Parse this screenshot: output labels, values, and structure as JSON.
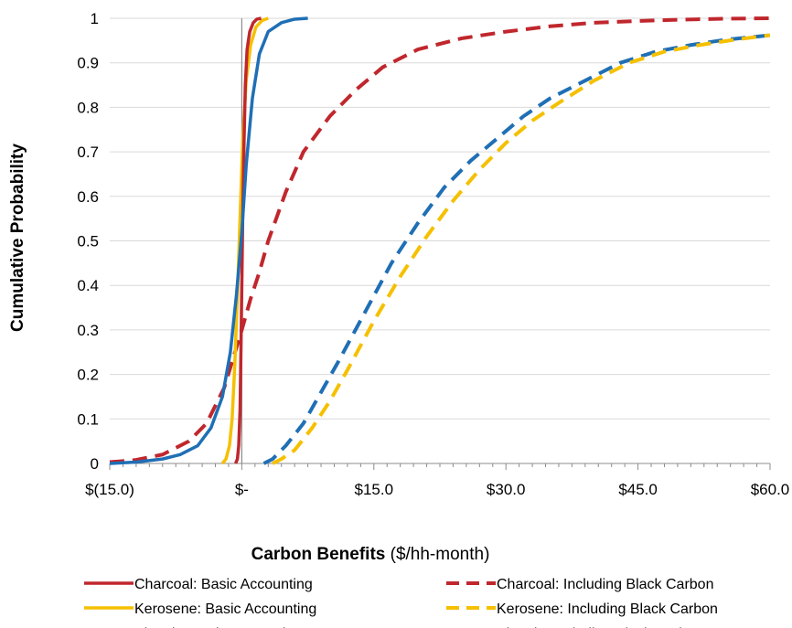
{
  "chart_data": {
    "type": "line",
    "xlabel_bold": "Carbon Benefits",
    "xlabel_rest": " ($/hh-month)",
    "ylabel": "Cumulative Probability",
    "xlim": [
      -15,
      60
    ],
    "ylim": [
      0,
      1
    ],
    "x_ticks": [
      {
        "value": -15,
        "label": "$(15.0)"
      },
      {
        "value": 0,
        "label": "$-"
      },
      {
        "value": 15,
        "label": "$15.0"
      },
      {
        "value": 30,
        "label": "$30.0"
      },
      {
        "value": 45,
        "label": "$45.0"
      },
      {
        "value": 60,
        "label": "$60.0"
      }
    ],
    "y_ticks": [
      {
        "value": 0,
        "label": "0"
      },
      {
        "value": 0.1,
        "label": "0.1"
      },
      {
        "value": 0.2,
        "label": "0.2"
      },
      {
        "value": 0.3,
        "label": "0.3"
      },
      {
        "value": 0.4,
        "label": "0.4"
      },
      {
        "value": 0.5,
        "label": "0.5"
      },
      {
        "value": 0.6,
        "label": "0.6"
      },
      {
        "value": 0.7,
        "label": "0.7"
      },
      {
        "value": 0.8,
        "label": "0.8"
      },
      {
        "value": 0.9,
        "label": "0.9"
      },
      {
        "value": 1,
        "label": "1"
      }
    ],
    "grid": "horizontal",
    "legend_position": "bottom",
    "series": [
      {
        "name": "Charcoal: Basic Accounting",
        "color": "#c0272d",
        "dashed": false,
        "x": [
          -0.7,
          -0.5,
          -0.35,
          -0.2,
          -0.1,
          0,
          0.1,
          0.25,
          0.4,
          0.6,
          0.9,
          1.3,
          1.7,
          2.2
        ],
        "y": [
          0,
          0.01,
          0.04,
          0.12,
          0.25,
          0.4,
          0.55,
          0.72,
          0.85,
          0.93,
          0.97,
          0.99,
          0.998,
          1.0
        ]
      },
      {
        "name": "Kerosene: Basic Accounting",
        "color": "#f5c000",
        "dashed": false,
        "x": [
          -2.2,
          -1.8,
          -1.4,
          -1.1,
          -0.8,
          -0.5,
          -0.2,
          0.1,
          0.5,
          1.0,
          1.6,
          2.3,
          3.0
        ],
        "y": [
          0,
          0.01,
          0.04,
          0.1,
          0.22,
          0.38,
          0.55,
          0.72,
          0.86,
          0.94,
          0.98,
          0.995,
          1.0
        ]
      },
      {
        "name": "Electric: Basic Accounting",
        "color": "#1f6fb5",
        "dashed": false,
        "x": [
          -15,
          -12,
          -9,
          -7,
          -5,
          -3.5,
          -2.2,
          -1.3,
          -0.6,
          0,
          0.5,
          1.2,
          2.0,
          3.0,
          4.5,
          6.0,
          7.5
        ],
        "y": [
          0,
          0.003,
          0.01,
          0.02,
          0.04,
          0.08,
          0.15,
          0.25,
          0.38,
          0.52,
          0.67,
          0.82,
          0.92,
          0.97,
          0.99,
          0.998,
          1.0
        ]
      },
      {
        "name": "Charcoal: Including Black Carbon",
        "color": "#c0272d",
        "dashed": true,
        "x": [
          -15,
          -12,
          -9,
          -6,
          -4,
          -2,
          0,
          1,
          2,
          3,
          5,
          7,
          10,
          13,
          16,
          20,
          25,
          30,
          35,
          40,
          45,
          50,
          55,
          60
        ],
        "y": [
          0.003,
          0.008,
          0.02,
          0.05,
          0.09,
          0.17,
          0.3,
          0.37,
          0.43,
          0.5,
          0.61,
          0.7,
          0.78,
          0.84,
          0.89,
          0.93,
          0.955,
          0.97,
          0.982,
          0.99,
          0.994,
          0.997,
          0.999,
          1.0
        ]
      },
      {
        "name": "Kerosene: Including Black Carbon",
        "color": "#f5c000",
        "dashed": true,
        "x": [
          3.5,
          4.5,
          6,
          8,
          10,
          12,
          15,
          18,
          21,
          24,
          27,
          30,
          33,
          36,
          40,
          44,
          48,
          52,
          56,
          60
        ],
        "y": [
          0,
          0.01,
          0.03,
          0.08,
          0.14,
          0.21,
          0.32,
          0.42,
          0.51,
          0.59,
          0.66,
          0.72,
          0.77,
          0.81,
          0.86,
          0.9,
          0.925,
          0.94,
          0.952,
          0.962
        ]
      },
      {
        "name": "Electric: Including Black Carbon",
        "color": "#1f6fb5",
        "dashed": true,
        "x": [
          2.5,
          3.5,
          5,
          7,
          9,
          11,
          14,
          17,
          20,
          23,
          26,
          29,
          32,
          35,
          39,
          43,
          47,
          51,
          55,
          60
        ],
        "y": [
          0,
          0.01,
          0.04,
          0.09,
          0.16,
          0.23,
          0.34,
          0.45,
          0.54,
          0.62,
          0.68,
          0.73,
          0.78,
          0.82,
          0.86,
          0.9,
          0.925,
          0.94,
          0.952,
          0.962
        ]
      }
    ]
  }
}
